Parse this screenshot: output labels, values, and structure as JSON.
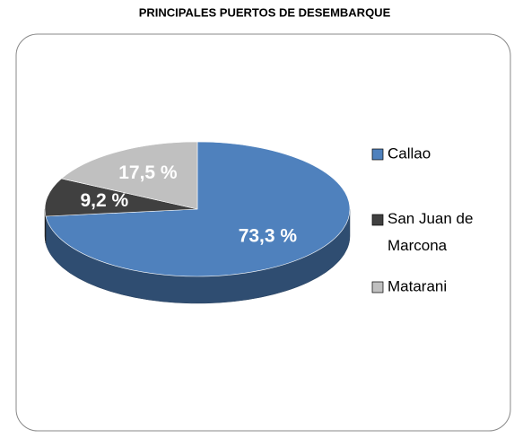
{
  "chart_data": {
    "type": "pie",
    "title": "PRINCIPALES PUERTOS DE DESEMBARQUE",
    "categories": [
      "Callao",
      "San Juan de Marcona",
      "Matarani"
    ],
    "values": [
      73.3,
      9.2,
      17.5
    ],
    "value_labels": [
      "73,3 %",
      "9,2 %",
      "17,5 %"
    ],
    "colors": [
      "#4f81bd",
      "#404040",
      "#c0c0c0"
    ],
    "legend": "right"
  }
}
